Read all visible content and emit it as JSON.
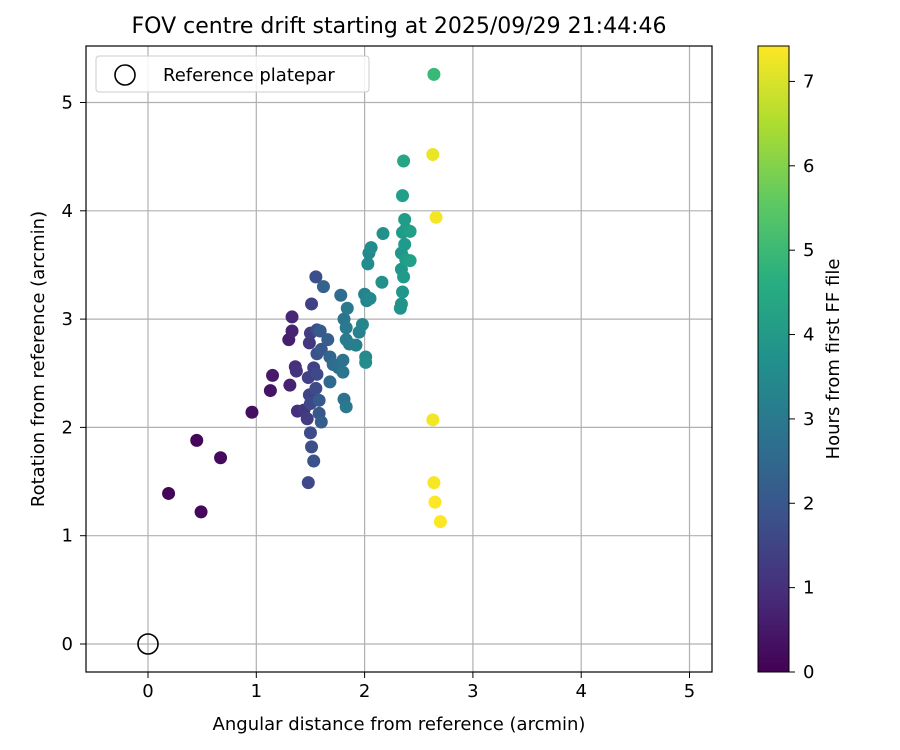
{
  "chart_data": {
    "type": "scatter",
    "title": "FOV centre drift starting at 2025/09/29 21:44:46",
    "xlabel": "Angular distance from reference (arcmin)",
    "ylabel": "Rotation from reference (arcmin)",
    "xlim": [
      -0.58,
      5.22
    ],
    "ylim": [
      -0.26,
      5.55
    ],
    "xticks": [
      0,
      1,
      2,
      3,
      4,
      5
    ],
    "yticks": [
      0,
      1,
      2,
      3,
      4,
      5
    ],
    "grid": true,
    "legend": {
      "position": "top-left",
      "entries": [
        "Reference platepar"
      ]
    },
    "reference_point": {
      "x": 0,
      "y": 0,
      "label": "Reference platepar"
    },
    "colorbar": {
      "label": "Hours from first FF file",
      "range": [
        0,
        7.42
      ],
      "ticks": [
        0,
        1,
        2,
        3,
        4,
        5,
        6,
        7
      ],
      "colormap": "viridis"
    },
    "points": [
      {
        "x": 0.19,
        "y": 1.39,
        "h": 0.1
      },
      {
        "x": 0.49,
        "y": 1.22,
        "h": 0.15
      },
      {
        "x": 0.45,
        "y": 1.88,
        "h": 0.1
      },
      {
        "x": 0.67,
        "y": 1.72,
        "h": 0.2
      },
      {
        "x": 0.96,
        "y": 2.14,
        "h": 0.3
      },
      {
        "x": 1.13,
        "y": 2.34,
        "h": 0.4
      },
      {
        "x": 1.15,
        "y": 2.48,
        "h": 0.5
      },
      {
        "x": 1.31,
        "y": 2.39,
        "h": 0.7
      },
      {
        "x": 1.3,
        "y": 2.81,
        "h": 0.6
      },
      {
        "x": 1.33,
        "y": 2.89,
        "h": 0.7
      },
      {
        "x": 1.33,
        "y": 3.02,
        "h": 0.8
      },
      {
        "x": 1.36,
        "y": 2.56,
        "h": 1.0
      },
      {
        "x": 1.37,
        "y": 2.52,
        "h": 1.1
      },
      {
        "x": 1.38,
        "y": 2.15,
        "h": 1.0
      },
      {
        "x": 1.44,
        "y": 2.16,
        "h": 1.2
      },
      {
        "x": 1.47,
        "y": 2.08,
        "h": 1.3
      },
      {
        "x": 1.48,
        "y": 1.49,
        "h": 1.6
      },
      {
        "x": 1.48,
        "y": 2.46,
        "h": 1.4
      },
      {
        "x": 1.49,
        "y": 2.3,
        "h": 1.5
      },
      {
        "x": 1.49,
        "y": 2.78,
        "h": 1.2
      },
      {
        "x": 1.5,
        "y": 2.87,
        "h": 1.3
      },
      {
        "x": 1.5,
        "y": 1.95,
        "h": 1.7
      },
      {
        "x": 1.5,
        "y": 2.22,
        "h": 1.6
      },
      {
        "x": 1.51,
        "y": 1.82,
        "h": 1.8
      },
      {
        "x": 1.51,
        "y": 3.14,
        "h": 1.4
      },
      {
        "x": 1.53,
        "y": 1.69,
        "h": 1.9
      },
      {
        "x": 1.53,
        "y": 2.55,
        "h": 1.5
      },
      {
        "x": 1.55,
        "y": 2.36,
        "h": 1.7
      },
      {
        "x": 1.56,
        "y": 2.49,
        "h": 1.6
      },
      {
        "x": 1.55,
        "y": 3.39,
        "h": 1.8
      },
      {
        "x": 1.56,
        "y": 2.68,
        "h": 1.9
      },
      {
        "x": 1.56,
        "y": 2.9,
        "h": 1.7
      },
      {
        "x": 1.58,
        "y": 2.13,
        "h": 2.0
      },
      {
        "x": 1.58,
        "y": 2.25,
        "h": 2.1
      },
      {
        "x": 1.6,
        "y": 2.05,
        "h": 2.2
      },
      {
        "x": 1.6,
        "y": 2.72,
        "h": 2.0
      },
      {
        "x": 1.59,
        "y": 2.89,
        "h": 2.1
      },
      {
        "x": 1.62,
        "y": 3.3,
        "h": 2.3
      },
      {
        "x": 1.66,
        "y": 2.81,
        "h": 2.2
      },
      {
        "x": 1.68,
        "y": 2.65,
        "h": 2.4
      },
      {
        "x": 1.68,
        "y": 2.42,
        "h": 2.5
      },
      {
        "x": 1.71,
        "y": 2.58,
        "h": 2.6
      },
      {
        "x": 1.76,
        "y": 2.55,
        "h": 2.7
      },
      {
        "x": 1.78,
        "y": 3.22,
        "h": 2.6
      },
      {
        "x": 1.8,
        "y": 2.62,
        "h": 2.8
      },
      {
        "x": 1.8,
        "y": 2.51,
        "h": 2.9
      },
      {
        "x": 1.81,
        "y": 2.26,
        "h": 2.8
      },
      {
        "x": 1.81,
        "y": 3.0,
        "h": 2.9
      },
      {
        "x": 1.83,
        "y": 2.19,
        "h": 3.0
      },
      {
        "x": 1.83,
        "y": 2.92,
        "h": 3.0
      },
      {
        "x": 1.83,
        "y": 2.81,
        "h": 3.1
      },
      {
        "x": 1.84,
        "y": 3.1,
        "h": 3.0
      },
      {
        "x": 1.86,
        "y": 2.77,
        "h": 3.1
      },
      {
        "x": 1.92,
        "y": 2.76,
        "h": 3.2
      },
      {
        "x": 1.95,
        "y": 2.88,
        "h": 3.3
      },
      {
        "x": 1.98,
        "y": 2.95,
        "h": 3.4
      },
      {
        "x": 2.0,
        "y": 3.23,
        "h": 3.3
      },
      {
        "x": 2.01,
        "y": 2.65,
        "h": 3.5
      },
      {
        "x": 2.01,
        "y": 2.6,
        "h": 3.6
      },
      {
        "x": 2.02,
        "y": 3.17,
        "h": 3.4
      },
      {
        "x": 2.03,
        "y": 3.51,
        "h": 3.6
      },
      {
        "x": 2.04,
        "y": 3.61,
        "h": 3.5
      },
      {
        "x": 2.05,
        "y": 3.19,
        "h": 3.5
      },
      {
        "x": 2.06,
        "y": 3.66,
        "h": 3.6
      },
      {
        "x": 2.16,
        "y": 3.34,
        "h": 3.7
      },
      {
        "x": 2.17,
        "y": 3.79,
        "h": 3.7
      },
      {
        "x": 2.33,
        "y": 3.1,
        "h": 3.8
      },
      {
        "x": 2.34,
        "y": 3.14,
        "h": 3.8
      },
      {
        "x": 2.34,
        "y": 3.46,
        "h": 3.9
      },
      {
        "x": 2.34,
        "y": 3.61,
        "h": 3.9
      },
      {
        "x": 2.35,
        "y": 3.8,
        "h": 4.0
      },
      {
        "x": 2.35,
        "y": 4.14,
        "h": 4.2
      },
      {
        "x": 2.35,
        "y": 3.25,
        "h": 3.9
      },
      {
        "x": 2.36,
        "y": 3.39,
        "h": 4.0
      },
      {
        "x": 2.36,
        "y": 4.46,
        "h": 4.4
      },
      {
        "x": 2.37,
        "y": 3.69,
        "h": 4.0
      },
      {
        "x": 2.37,
        "y": 3.92,
        "h": 4.1
      },
      {
        "x": 2.38,
        "y": 3.83,
        "h": 4.1
      },
      {
        "x": 2.38,
        "y": 3.55,
        "h": 4.1
      },
      {
        "x": 2.42,
        "y": 3.81,
        "h": 4.2
      },
      {
        "x": 2.42,
        "y": 3.54,
        "h": 4.2
      },
      {
        "x": 2.64,
        "y": 5.26,
        "h": 5.0
      },
      {
        "x": 2.63,
        "y": 4.52,
        "h": 7.2
      },
      {
        "x": 2.66,
        "y": 3.94,
        "h": 7.3
      },
      {
        "x": 2.63,
        "y": 2.07,
        "h": 7.3
      },
      {
        "x": 2.64,
        "y": 1.49,
        "h": 7.35
      },
      {
        "x": 2.65,
        "y": 1.31,
        "h": 7.4
      },
      {
        "x": 2.7,
        "y": 1.13,
        "h": 7.42
      }
    ]
  }
}
